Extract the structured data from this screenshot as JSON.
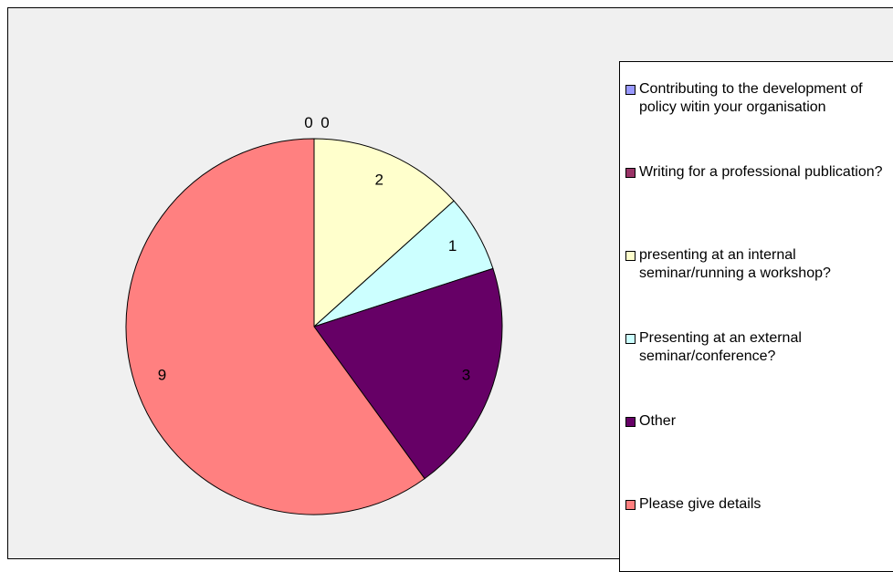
{
  "chart_data": {
    "type": "pie",
    "categories": [
      "Contributing to the development of policy witin your organisation",
      "Writing for a professional publication?",
      "presenting at an internal seminar/running a workshop?",
      "Presenting at an external seminar/conference?",
      "Other",
      "Please give details"
    ],
    "values": [
      0,
      0,
      2,
      1,
      3,
      9
    ],
    "colors": [
      "#9999ff",
      "#993366",
      "#ffffcc",
      "#ccffff",
      "#660066",
      "#ff8080"
    ]
  }
}
